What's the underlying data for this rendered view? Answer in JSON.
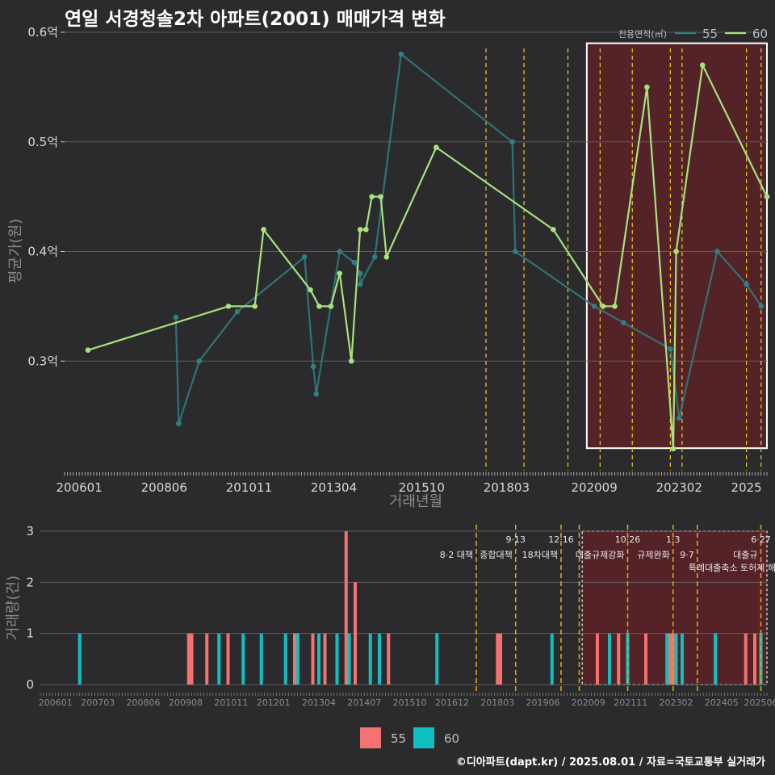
{
  "title": "연일 서경청솔2차 아파트(2001) 매매가격 변화",
  "footer": "©디아파트(dapt.kr) / 2025.08.01 / 자료=국토교통부 실거래가",
  "colors": {
    "series_55_line": "#2f7f84",
    "series_60_line": "#a6e27e",
    "bar_55": "#f47270",
    "bar_60": "#10bfc2",
    "policy_line": "#e8c21a",
    "highlight": "#5a2227"
  },
  "chart_data": [
    {
      "type": "line",
      "xlabel": "거래년월",
      "ylabel": "평균가(원)",
      "legend_title": "전용면적(㎡)",
      "legend_position": "top-right",
      "x_range": [
        "2005-08",
        "2025-08"
      ],
      "ylim": [
        0.2,
        0.6
      ],
      "y_ticks": [
        {
          "v": 0.3,
          "label": "0.3억"
        },
        {
          "v": 0.4,
          "label": "0.4억"
        },
        {
          "v": 0.5,
          "label": "0.5억"
        },
        {
          "v": 0.6,
          "label": "0.6억"
        }
      ],
      "x_ticks": [
        "200601",
        "200806",
        "201011",
        "201304",
        "201510",
        "201803",
        "202009",
        "202302",
        "2025"
      ],
      "grid": true,
      "highlight_range": [
        "2020-07",
        "2025-08"
      ],
      "policy_dates": [
        "2017-08",
        "2018-09",
        "2019-12",
        "2020-11",
        "2021-10",
        "2022-11",
        "2023-03",
        "2025-01",
        "2025-06"
      ],
      "series": [
        {
          "name": "55",
          "points": [
            [
              "2008-10",
              0.34
            ],
            [
              "2008-11",
              0.243
            ],
            [
              "2009-06",
              0.3
            ],
            [
              "2010-07",
              0.345
            ],
            [
              "2012-06",
              0.395
            ],
            [
              "2012-09",
              0.295
            ],
            [
              "2012-10",
              0.27
            ],
            [
              "2013-06",
              0.4
            ],
            [
              "2013-11",
              0.39
            ],
            [
              "2014-01",
              0.38
            ],
            [
              "2014-01",
              0.37
            ],
            [
              "2014-06",
              0.395
            ],
            [
              "2015-03",
              0.58
            ],
            [
              "2018-05",
              0.5
            ],
            [
              "2018-06",
              0.4
            ],
            [
              "2020-09",
              0.35
            ],
            [
              "2021-07",
              0.335
            ],
            [
              "2022-11",
              0.311
            ],
            [
              "2023-02",
              0.248
            ],
            [
              "2024-03",
              0.4
            ],
            [
              "2025-01",
              0.37
            ],
            [
              "2025-06",
              0.35
            ]
          ]
        },
        {
          "name": "60",
          "points": [
            [
              "2006-04",
              0.31
            ],
            [
              "2010-04",
              0.35
            ],
            [
              "2011-01",
              0.35
            ],
            [
              "2011-04",
              0.42
            ],
            [
              "2012-08",
              0.365
            ],
            [
              "2012-11",
              0.35
            ],
            [
              "2013-03",
              0.35
            ],
            [
              "2013-06",
              0.38
            ],
            [
              "2013-10",
              0.3
            ],
            [
              "2014-01",
              0.42
            ],
            [
              "2014-03",
              0.42
            ],
            [
              "2014-05",
              0.45
            ],
            [
              "2014-08",
              0.45
            ],
            [
              "2014-10",
              0.395
            ],
            [
              "2016-03",
              0.495
            ],
            [
              "2019-07",
              0.42
            ],
            [
              "2020-12",
              0.35
            ],
            [
              "2021-04",
              0.35
            ],
            [
              "2022-03",
              0.55
            ],
            [
              "2022-12",
              0.22
            ],
            [
              "2023-01",
              0.4
            ],
            [
              "2023-10",
              0.57
            ],
            [
              "2025-08",
              0.45
            ]
          ]
        }
      ]
    },
    {
      "type": "bar",
      "ylabel": "거래량(건)",
      "ylim": [
        0,
        3
      ],
      "y_ticks": [
        "0",
        "1",
        "2",
        "3"
      ],
      "x_ticks": [
        "200601",
        "200703",
        "200806",
        "200908",
        "201011",
        "201201",
        "201304",
        "201407",
        "201510",
        "201612",
        "201803",
        "201906",
        "202009",
        "202111",
        "202302",
        "202405",
        "202506"
      ],
      "x_range": [
        "2005-08",
        "2025-08"
      ],
      "grid": true,
      "legend_position": "bottom",
      "legend": [
        "55",
        "60"
      ],
      "policies": [
        {
          "date": "2017-08",
          "date_label": "",
          "label": "8·2 대책"
        },
        {
          "date": "2018-09",
          "date_label": "9·13",
          "label": "종합대책"
        },
        {
          "date": "2019-12",
          "date_label": "12·16",
          "label": "18차대책"
        },
        {
          "date": "2020-06",
          "date_label": "",
          "label": ""
        },
        {
          "date": "2021-10",
          "date_label": "10·26",
          "label": "대출규제강화"
        },
        {
          "date": "2023-01",
          "date_label": "1·3",
          "label": "규제완화"
        },
        {
          "date": "2023-09",
          "date_label": "",
          "label": "9·7"
        },
        {
          "date": "2025-06",
          "date_label": "6·27",
          "label": "대출규"
        }
      ],
      "notes": [
        "특례대출축소 토허제 해제"
      ],
      "series": [
        {
          "name": "55",
          "bars": [
            [
              "2009-09",
              1
            ],
            [
              "2009-10",
              1
            ],
            [
              "2010-03",
              1
            ],
            [
              "2010-10",
              1
            ],
            [
              "2012-08",
              1
            ],
            [
              "2012-09",
              1
            ],
            [
              "2013-02",
              1
            ],
            [
              "2013-06",
              1
            ],
            [
              "2014-01",
              3
            ],
            [
              "2014-04",
              2
            ],
            [
              "2015-03",
              1
            ],
            [
              "2018-03",
              1
            ],
            [
              "2018-04",
              1
            ],
            [
              "2020-12",
              1
            ],
            [
              "2021-07",
              1
            ],
            [
              "2022-04",
              1
            ],
            [
              "2022-12",
              1
            ],
            [
              "2023-01",
              1
            ],
            [
              "2024-03",
              1
            ],
            [
              "2025-01",
              1
            ],
            [
              "2025-04",
              1
            ]
          ]
        },
        {
          "name": "60",
          "bars": [
            [
              "2006-09",
              1
            ],
            [
              "2010-07",
              1
            ],
            [
              "2011-03",
              1
            ],
            [
              "2011-09",
              1
            ],
            [
              "2012-05",
              1
            ],
            [
              "2012-09",
              1
            ],
            [
              "2013-04",
              1
            ],
            [
              "2013-10",
              1
            ],
            [
              "2014-02",
              1
            ],
            [
              "2014-09",
              1
            ],
            [
              "2014-12",
              1
            ],
            [
              "2016-07",
              1
            ],
            [
              "2019-09",
              1
            ],
            [
              "2021-04",
              1
            ],
            [
              "2021-10",
              1
            ],
            [
              "2022-11",
              1
            ],
            [
              "2023-02",
              1
            ],
            [
              "2023-04",
              1
            ],
            [
              "2024-03",
              1
            ],
            [
              "2025-06",
              1
            ]
          ]
        }
      ]
    }
  ]
}
